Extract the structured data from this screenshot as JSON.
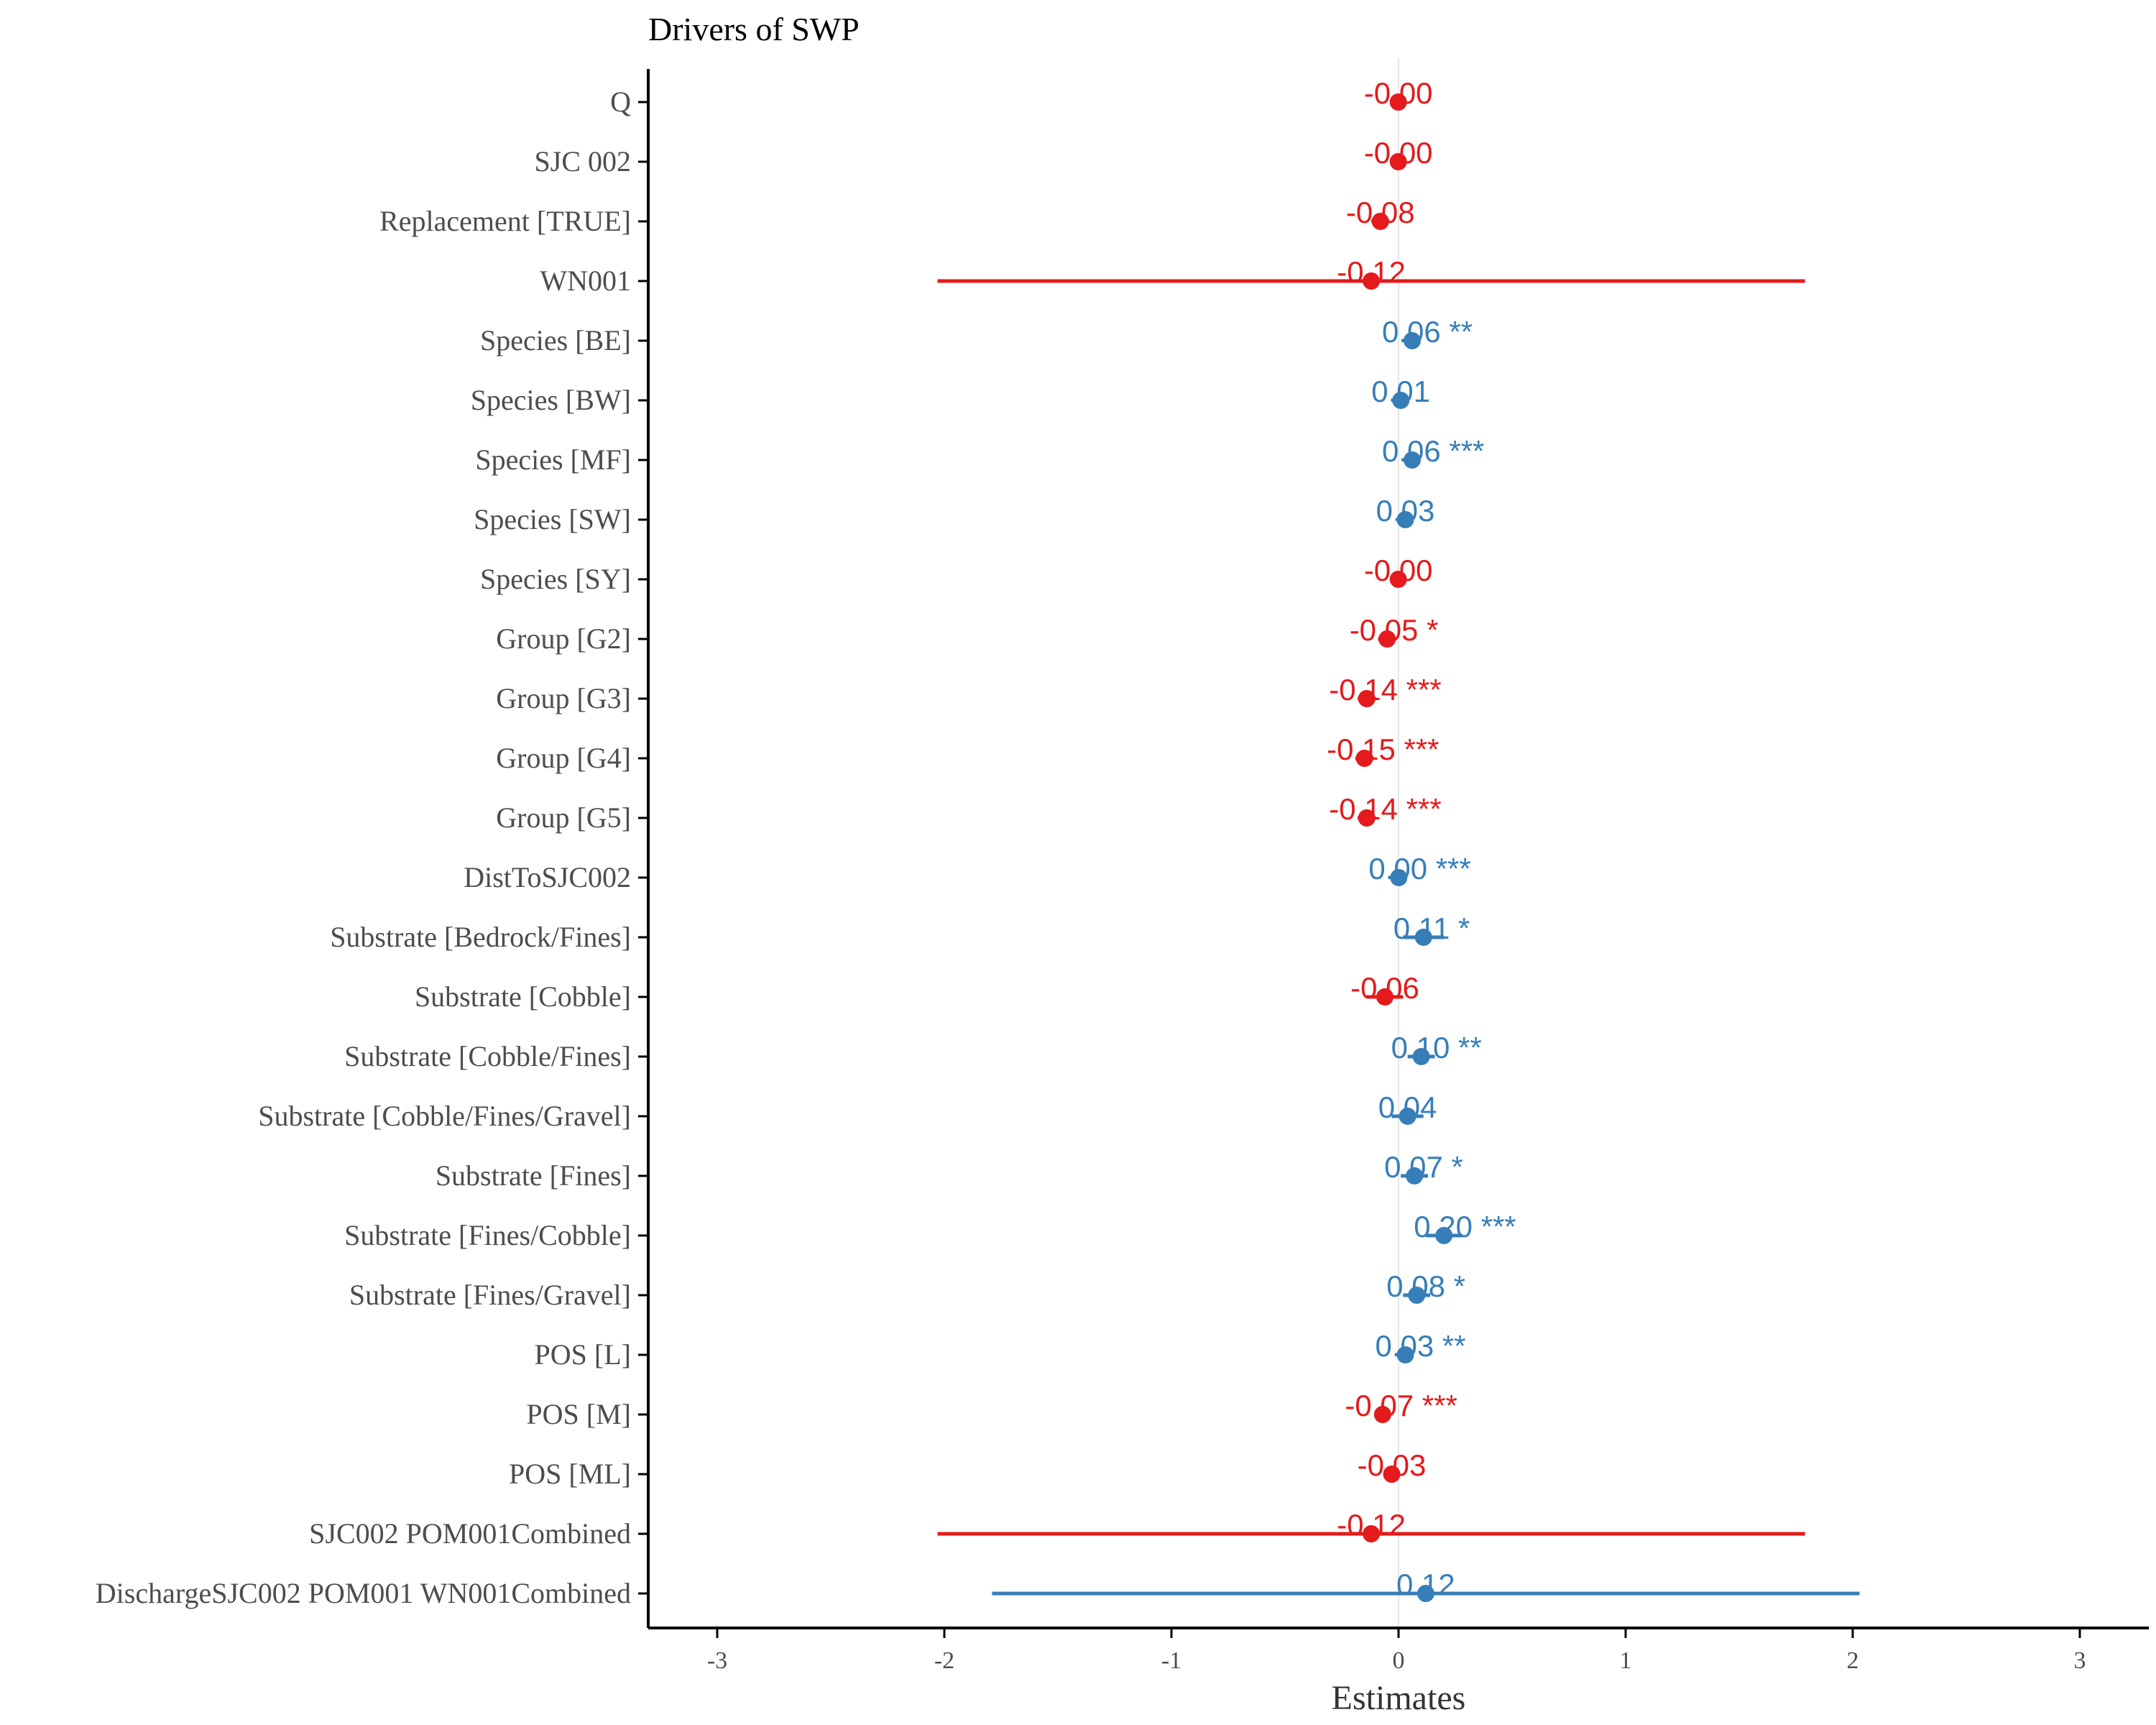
{
  "chart_data": {
    "type": "forest",
    "title": "Drivers of SWP",
    "xlabel": "Estimates",
    "xlim": [
      -3.3,
      3.3
    ],
    "x_ticks": [
      -3,
      -2,
      -1,
      0,
      1,
      2,
      3
    ],
    "x_tick_labels": [
      "-3",
      "-2",
      "-1",
      "0",
      "1",
      "2",
      "3"
    ],
    "reference_line": 0,
    "grid": false,
    "colors": {
      "negative": "#e41a1c",
      "positive": "#377eb8",
      "axis": "#000000",
      "refline": "#e6e6e6"
    },
    "terms": [
      {
        "label": "Q",
        "estimate": -0.001,
        "ci_low": -0.01,
        "ci_high": 0.01,
        "estimate_label": "-0.00",
        "stars": ""
      },
      {
        "label": "SJC 002",
        "estimate": -0.001,
        "ci_low": -0.01,
        "ci_high": 0.01,
        "estimate_label": "-0.00",
        "stars": ""
      },
      {
        "label": "Replacement [TRUE]",
        "estimate": -0.08,
        "ci_low": -0.12,
        "ci_high": -0.04,
        "estimate_label": "-0.08",
        "stars": ""
      },
      {
        "label": "WN001",
        "estimate": -0.12,
        "ci_low": -2.03,
        "ci_high": 1.79,
        "estimate_label": "-0.12",
        "stars": ""
      },
      {
        "label": "Species [BE]",
        "estimate": 0.06,
        "ci_low": 0.03,
        "ci_high": 0.09,
        "estimate_label": "0.06",
        "stars": "**"
      },
      {
        "label": "Species [BW]",
        "estimate": 0.01,
        "ci_low": -0.02,
        "ci_high": 0.04,
        "estimate_label": "0.01",
        "stars": ""
      },
      {
        "label": "Species [MF]",
        "estimate": 0.06,
        "ci_low": 0.04,
        "ci_high": 0.08,
        "estimate_label": "0.06",
        "stars": "***"
      },
      {
        "label": "Species [SW]",
        "estimate": 0.03,
        "ci_low": 0.0,
        "ci_high": 0.06,
        "estimate_label": "0.03",
        "stars": ""
      },
      {
        "label": "Species [SY]",
        "estimate": -0.001,
        "ci_low": -0.03,
        "ci_high": 0.03,
        "estimate_label": "-0.00",
        "stars": ""
      },
      {
        "label": "Group [G2]",
        "estimate": -0.05,
        "ci_low": -0.09,
        "ci_high": -0.01,
        "estimate_label": "-0.05",
        "stars": "*"
      },
      {
        "label": "Group [G3]",
        "estimate": -0.14,
        "ci_low": -0.18,
        "ci_high": -0.1,
        "estimate_label": "-0.14",
        "stars": "***"
      },
      {
        "label": "Group [G4]",
        "estimate": -0.15,
        "ci_low": -0.19,
        "ci_high": -0.11,
        "estimate_label": "-0.15",
        "stars": "***"
      },
      {
        "label": "Group [G5]",
        "estimate": -0.14,
        "ci_low": -0.18,
        "ci_high": -0.1,
        "estimate_label": "-0.14",
        "stars": "***"
      },
      {
        "label": "DistToSJC002",
        "estimate": 0.001,
        "ci_low": -0.005,
        "ci_high": 0.005,
        "estimate_label": "0.00",
        "stars": "***"
      },
      {
        "label": "Substrate [Bedrock/Fines]",
        "estimate": 0.11,
        "ci_low": 0.02,
        "ci_high": 0.2,
        "estimate_label": "0.11",
        "stars": "*"
      },
      {
        "label": "Substrate [Cobble]",
        "estimate": -0.06,
        "ci_low": -0.14,
        "ci_high": 0.02,
        "estimate_label": "-0.06",
        "stars": ""
      },
      {
        "label": "Substrate [Cobble/Fines]",
        "estimate": 0.1,
        "ci_low": 0.04,
        "ci_high": 0.16,
        "estimate_label": "0.10",
        "stars": "**"
      },
      {
        "label": "Substrate [Cobble/Fines/Gravel]",
        "estimate": 0.04,
        "ci_low": -0.03,
        "ci_high": 0.11,
        "estimate_label": "0.04",
        "stars": ""
      },
      {
        "label": "Substrate [Fines]",
        "estimate": 0.07,
        "ci_low": 0.01,
        "ci_high": 0.13,
        "estimate_label": "0.07",
        "stars": "*"
      },
      {
        "label": "Substrate [Fines/Cobble]",
        "estimate": 0.2,
        "ci_low": 0.12,
        "ci_high": 0.28,
        "estimate_label": "0.20",
        "stars": "***"
      },
      {
        "label": "Substrate [Fines/Gravel]",
        "estimate": 0.08,
        "ci_low": 0.02,
        "ci_high": 0.14,
        "estimate_label": "0.08",
        "stars": "*"
      },
      {
        "label": "POS [L]",
        "estimate": 0.03,
        "ci_low": 0.01,
        "ci_high": 0.05,
        "estimate_label": "0.03",
        "stars": "**"
      },
      {
        "label": "POS [M]",
        "estimate": -0.07,
        "ci_low": -0.09,
        "ci_high": -0.05,
        "estimate_label": "-0.07",
        "stars": "***"
      },
      {
        "label": "POS [ML]",
        "estimate": -0.03,
        "ci_low": -0.06,
        "ci_high": 0.0,
        "estimate_label": "-0.03",
        "stars": ""
      },
      {
        "label": "SJC002 POM001Combined",
        "estimate": -0.12,
        "ci_low": -2.03,
        "ci_high": 1.79,
        "estimate_label": "-0.12",
        "stars": ""
      },
      {
        "label": "DischargeSJC002 POM001 WN001Combined",
        "estimate": 0.12,
        "ci_low": -1.79,
        "ci_high": 2.03,
        "estimate_label": "0.12",
        "stars": ""
      }
    ]
  }
}
